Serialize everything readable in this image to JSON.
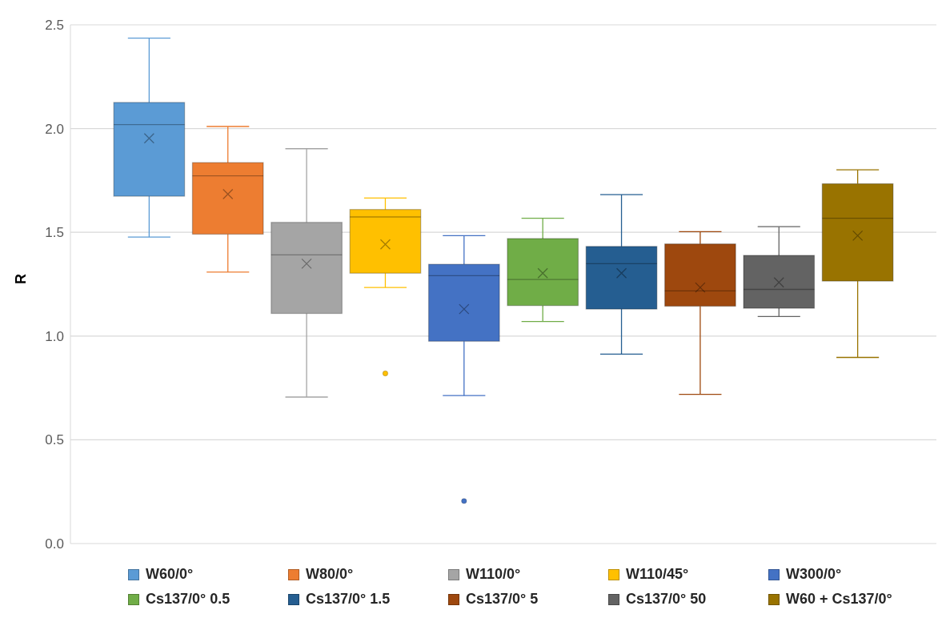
{
  "chart_data": {
    "type": "box",
    "ylabel": "R",
    "categories": [
      null
    ],
    "ylim": [
      0,
      2.5
    ],
    "yticks": [
      {
        "value": 0,
        "label": "0.0"
      },
      {
        "value": 0.5,
        "label": "0.5"
      },
      {
        "value": 1,
        "label": "1.0"
      },
      {
        "value": 1.5,
        "label": "1.5"
      },
      {
        "value": 2,
        "label": "2.0"
      },
      {
        "value": 2.5,
        "label": "2.5"
      }
    ],
    "grid": "y",
    "legend": "bottom",
    "series": [
      {
        "name": "W60/0°",
        "color": "#5b9bd5",
        "boxes": [
          {
            "low": 1.477,
            "q1": 1.674,
            "median": 2.019,
            "q3": 2.126,
            "high": 2.436,
            "mean": 1.953
          }
        ]
      },
      {
        "name": "W80/0°",
        "color": "#ed7d31",
        "boxes": [
          {
            "low": 1.308,
            "q1": 1.491,
            "median": 1.772,
            "q3": 1.836,
            "high": 2.01,
            "mean": 1.684
          }
        ]
      },
      {
        "name": "W110/0°",
        "color": "#a5a5a5",
        "boxes": [
          {
            "low": 0.706,
            "q1": 1.109,
            "median": 1.391,
            "q3": 1.548,
            "high": 1.903,
            "mean": 1.349
          }
        ]
      },
      {
        "name": "W110/45°",
        "color": "#ffc000",
        "boxes": [
          {
            "low": 1.234,
            "q1": 1.303,
            "median": 1.574,
            "q3": 1.61,
            "high": 1.665,
            "mean": 1.442,
            "outliers": [
              0.82
            ]
          }
        ]
      },
      {
        "name": "W300/0°",
        "color": "#4472c4",
        "boxes": [
          {
            "low": 0.713,
            "q1": 0.975,
            "median": 1.291,
            "q3": 1.346,
            "high": 1.484,
            "mean": 1.13,
            "outliers": [
              0.205
            ]
          }
        ]
      },
      {
        "name": "Cs137/0° 0.5",
        "color": "#70ad47",
        "boxes": [
          {
            "low": 1.07,
            "q1": 1.147,
            "median": 1.273,
            "q3": 1.47,
            "high": 1.568,
            "mean": 1.303
          }
        ]
      },
      {
        "name": "Cs137/0° 1.5",
        "color": "#255e91",
        "boxes": [
          {
            "low": 0.913,
            "q1": 1.13,
            "median": 1.349,
            "q3": 1.432,
            "high": 1.682,
            "mean": 1.303
          }
        ]
      },
      {
        "name": "Cs137/0° 5",
        "color": "#9e480e",
        "boxes": [
          {
            "low": 0.719,
            "q1": 1.144,
            "median": 1.218,
            "q3": 1.444,
            "high": 1.503,
            "mean": 1.234
          }
        ]
      },
      {
        "name": "Cs137/0° 50",
        "color": "#636363",
        "boxes": [
          {
            "low": 1.094,
            "q1": 1.134,
            "median": 1.225,
            "q3": 1.389,
            "high": 1.527,
            "mean": 1.259
          }
        ]
      },
      {
        "name": "W60 + Cs137/0°",
        "color": "#997300",
        "boxes": [
          {
            "low": 0.897,
            "q1": 1.265,
            "median": 1.568,
            "q3": 1.734,
            "high": 1.801,
            "mean": 1.484
          }
        ]
      }
    ]
  }
}
